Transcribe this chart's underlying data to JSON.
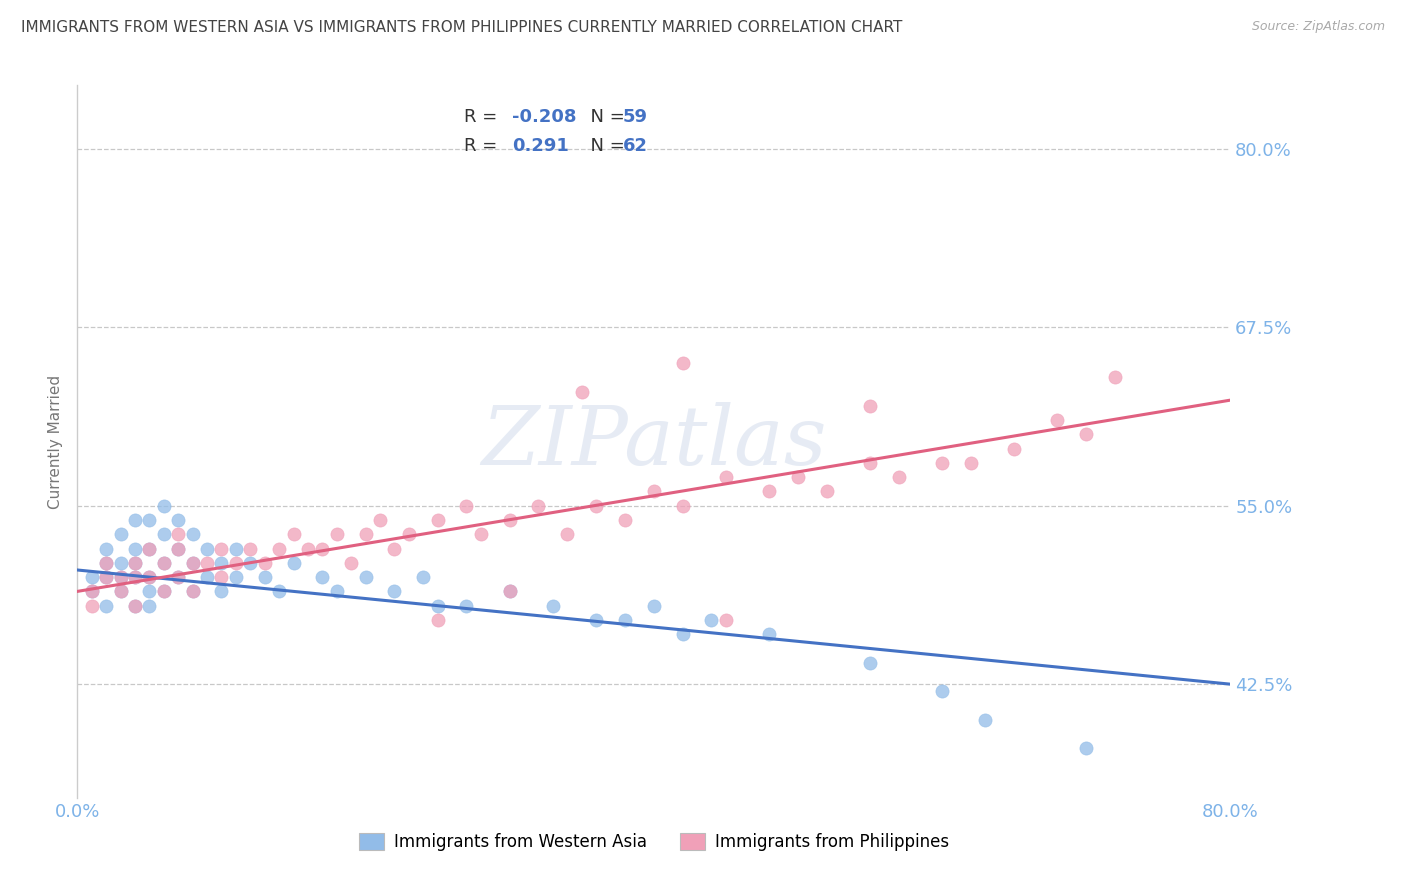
{
  "title": "IMMIGRANTS FROM WESTERN ASIA VS IMMIGRANTS FROM PHILIPPINES CURRENTLY MARRIED CORRELATION CHART",
  "source": "Source: ZipAtlas.com",
  "ylabel": "Currently Married",
  "blue_label": "Immigrants from Western Asia",
  "pink_label": "Immigrants from Philippines",
  "blue_color": "#92bce8",
  "pink_color": "#f0a0b8",
  "blue_line_color": "#4472c4",
  "pink_line_color": "#e06080",
  "blue_R": "-0.208",
  "blue_N": "59",
  "pink_R": "0.291",
  "pink_N": "62",
  "x_min": 0.0,
  "x_max": 0.8,
  "y_min": 0.345,
  "y_max": 0.845,
  "y_ticks": [
    0.425,
    0.55,
    0.675,
    0.8
  ],
  "y_tick_labels": [
    "42.5%",
    "55.0%",
    "67.5%",
    "80.0%"
  ],
  "x_ticks": [
    0.0,
    0.8
  ],
  "x_tick_labels": [
    "0.0%",
    "80.0%"
  ],
  "blue_trend_y0": 0.505,
  "blue_trend_y1": 0.425,
  "pink_trend_y0": 0.49,
  "pink_trend_y1": 0.624,
  "watermark": "ZIPatlas",
  "tick_color": "#7eb3e8",
  "grid_color": "#c8c8c8",
  "title_color": "#444444",
  "source_color": "#aaaaaa",
  "background": "#ffffff",
  "blue_scatter_x": [
    0.01,
    0.01,
    0.02,
    0.02,
    0.02,
    0.02,
    0.03,
    0.03,
    0.03,
    0.03,
    0.04,
    0.04,
    0.04,
    0.04,
    0.04,
    0.05,
    0.05,
    0.05,
    0.05,
    0.05,
    0.06,
    0.06,
    0.06,
    0.06,
    0.07,
    0.07,
    0.07,
    0.08,
    0.08,
    0.08,
    0.09,
    0.09,
    0.1,
    0.1,
    0.11,
    0.11,
    0.12,
    0.13,
    0.14,
    0.15,
    0.17,
    0.18,
    0.2,
    0.22,
    0.24,
    0.27,
    0.3,
    0.33,
    0.36,
    0.4,
    0.44,
    0.48,
    0.25,
    0.38,
    0.42,
    0.55,
    0.6,
    0.63,
    0.7
  ],
  "blue_scatter_y": [
    0.5,
    0.49,
    0.51,
    0.5,
    0.52,
    0.48,
    0.51,
    0.53,
    0.5,
    0.49,
    0.52,
    0.5,
    0.54,
    0.48,
    0.51,
    0.52,
    0.5,
    0.54,
    0.48,
    0.49,
    0.53,
    0.51,
    0.55,
    0.49,
    0.54,
    0.52,
    0.5,
    0.51,
    0.53,
    0.49,
    0.52,
    0.5,
    0.51,
    0.49,
    0.52,
    0.5,
    0.51,
    0.5,
    0.49,
    0.51,
    0.5,
    0.49,
    0.5,
    0.49,
    0.5,
    0.48,
    0.49,
    0.48,
    0.47,
    0.48,
    0.47,
    0.46,
    0.48,
    0.47,
    0.46,
    0.44,
    0.42,
    0.4,
    0.38
  ],
  "pink_scatter_x": [
    0.01,
    0.01,
    0.02,
    0.02,
    0.03,
    0.03,
    0.04,
    0.04,
    0.04,
    0.05,
    0.05,
    0.06,
    0.06,
    0.07,
    0.07,
    0.07,
    0.08,
    0.08,
    0.09,
    0.1,
    0.1,
    0.11,
    0.12,
    0.13,
    0.14,
    0.15,
    0.16,
    0.17,
    0.18,
    0.19,
    0.2,
    0.21,
    0.22,
    0.23,
    0.25,
    0.27,
    0.28,
    0.3,
    0.32,
    0.34,
    0.36,
    0.38,
    0.4,
    0.42,
    0.45,
    0.48,
    0.5,
    0.52,
    0.55,
    0.57,
    0.6,
    0.35,
    0.42,
    0.62,
    0.65,
    0.55,
    0.7,
    0.25,
    0.3,
    0.45,
    0.68,
    0.72
  ],
  "pink_scatter_y": [
    0.49,
    0.48,
    0.5,
    0.51,
    0.5,
    0.49,
    0.51,
    0.5,
    0.48,
    0.52,
    0.5,
    0.51,
    0.49,
    0.52,
    0.5,
    0.53,
    0.51,
    0.49,
    0.51,
    0.52,
    0.5,
    0.51,
    0.52,
    0.51,
    0.52,
    0.53,
    0.52,
    0.52,
    0.53,
    0.51,
    0.53,
    0.54,
    0.52,
    0.53,
    0.54,
    0.55,
    0.53,
    0.54,
    0.55,
    0.53,
    0.55,
    0.54,
    0.56,
    0.55,
    0.57,
    0.56,
    0.57,
    0.56,
    0.58,
    0.57,
    0.58,
    0.63,
    0.65,
    0.58,
    0.59,
    0.62,
    0.6,
    0.47,
    0.49,
    0.47,
    0.61,
    0.64
  ]
}
